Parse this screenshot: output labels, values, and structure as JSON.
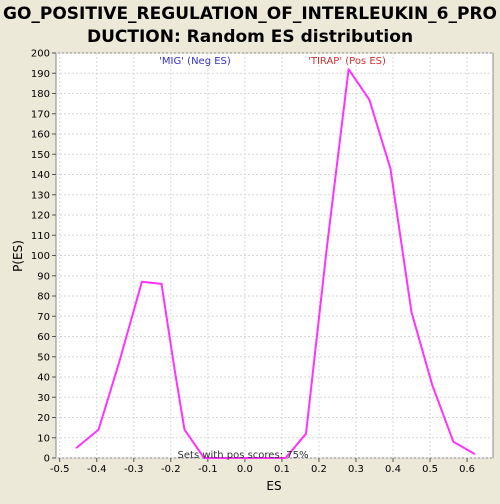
{
  "chart_data": {
    "type": "line",
    "title_line1": "GO_POSITIVE_REGULATION_OF_INTERLEUKIN_6_PRO",
    "title_line2": "DUCTION: Random ES distribution",
    "xlabel": "ES",
    "ylabel": "P(ES)",
    "xlim": [
      -0.51,
      0.67
    ],
    "ylim": [
      0,
      200
    ],
    "x_ticks": [
      -0.5,
      -0.4,
      -0.3,
      -0.2,
      -0.1,
      0.0,
      0.1,
      0.2,
      0.3,
      0.4,
      0.5,
      0.6
    ],
    "x_tick_labels": [
      "-0.5",
      "-0.4",
      "-0.3",
      "-0.2",
      "-0.1",
      "0.0",
      "0.1",
      "0.2",
      "0.3",
      "0.4",
      "0.5",
      "0.6"
    ],
    "y_ticks": [
      0,
      10,
      20,
      30,
      40,
      50,
      60,
      70,
      80,
      90,
      100,
      110,
      120,
      130,
      140,
      150,
      160,
      170,
      180,
      190,
      200
    ],
    "grid": true,
    "series_color": "#ff33ff",
    "series": [
      {
        "name": "P(ES)",
        "x": [
          -0.455,
          -0.395,
          -0.34,
          -0.278,
          -0.225,
          -0.19,
          -0.163,
          -0.11,
          0.11,
          0.165,
          0.222,
          0.28,
          0.336,
          0.393,
          0.45,
          0.506,
          0.563,
          0.62
        ],
        "y": [
          5,
          14,
          47,
          87,
          86,
          44,
          14,
          0,
          0,
          12,
          105,
          192,
          177,
          143,
          72,
          36,
          8,
          2
        ]
      }
    ],
    "annotations": {
      "neg_label": "'MIG' (Neg ES)",
      "pos_label": "'TIRAP' (Pos ES)",
      "footer": "Sets with pos scores: 75%"
    },
    "colors": {
      "background": "#ece9d8",
      "plot_bg": "#ffffff",
      "grid": "#d8d8d8",
      "neg_label": "#3333cc",
      "pos_label": "#cc3333"
    }
  }
}
